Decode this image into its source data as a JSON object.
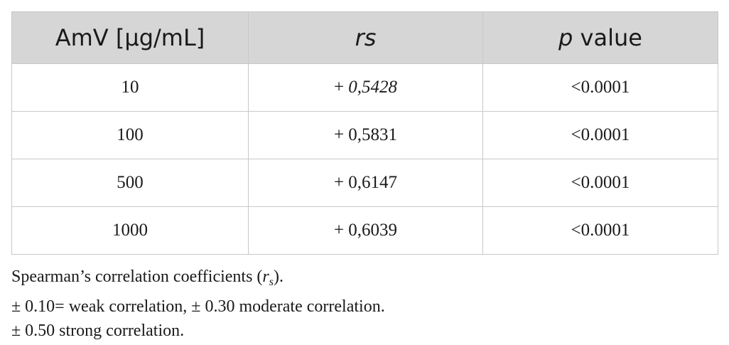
{
  "table": {
    "headers": {
      "col1": "AmV [µg/mL]",
      "col2": "rs",
      "col3_italic": "p",
      "col3_rest": " value"
    },
    "rows": [
      {
        "amv": "10",
        "rs_sign": "+ ",
        "rs_value": "0,5428",
        "p": "<0.0001"
      },
      {
        "amv": "100",
        "rs": "+ 0,5831",
        "p": "<0.0001"
      },
      {
        "amv": "500",
        "rs": "+ 0,6147",
        "p": "<0.0001"
      },
      {
        "amv": "1000",
        "rs": "+ 0,6039",
        "p": "<0.0001"
      }
    ]
  },
  "notes": {
    "line1_pre": "Spearman’s correlation coefficients (",
    "line1_r": "r",
    "line1_sub": "s",
    "line1_post": ").",
    "line2": "± 0.10= weak correlation, ± 0.30 moderate correlation.",
    "line3": "± 0.50 strong correlation."
  }
}
